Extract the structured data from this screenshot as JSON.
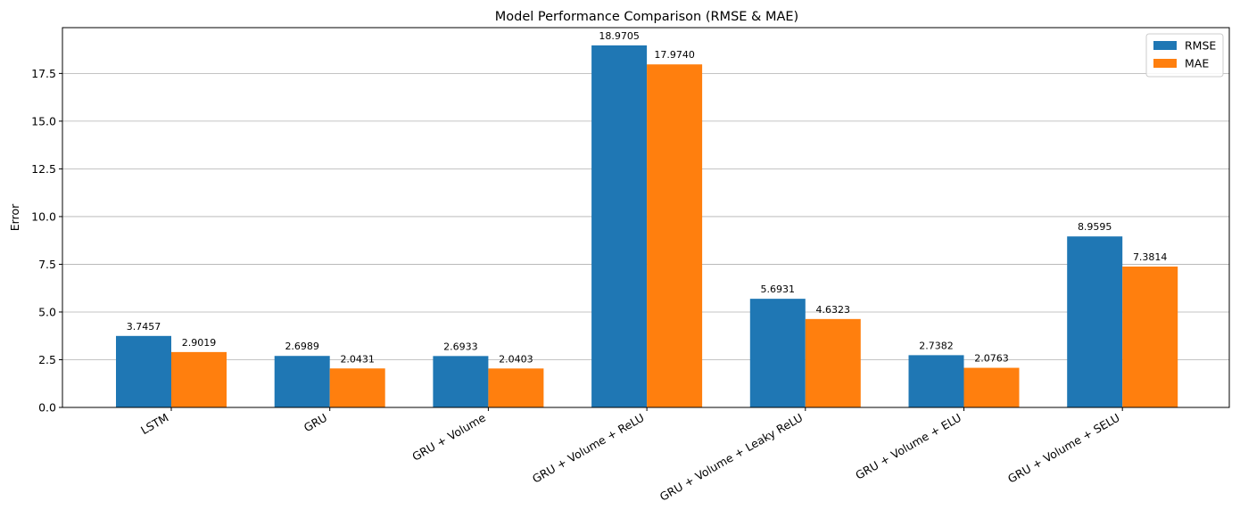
{
  "chart_data": {
    "type": "bar",
    "title": "Model Performance Comparison (RMSE & MAE)",
    "xlabel": "",
    "ylabel": "Error",
    "categories": [
      "LSTM",
      "GRU",
      "GRU + Volume",
      "GRU + Volume + ReLU",
      "GRU + Volume + Leaky ReLU",
      "GRU + Volume + ELU",
      "GRU + Volume + SELU"
    ],
    "series": [
      {
        "name": "RMSE",
        "color": "#1f77b4",
        "values": [
          3.7457,
          2.6989,
          2.6933,
          18.9705,
          5.6931,
          2.7382,
          8.9595
        ],
        "labels": [
          "3.7457",
          "2.6989",
          "2.6933",
          "18.9705",
          "5.6931",
          "2.7382",
          "8.9595"
        ]
      },
      {
        "name": "MAE",
        "color": "#ff7f0e",
        "values": [
          2.9019,
          2.0431,
          2.0403,
          17.974,
          4.6323,
          2.0763,
          7.3814
        ],
        "labels": [
          "2.9019",
          "2.0431",
          "2.0403",
          "17.9740",
          "4.6323",
          "2.0763",
          "7.3814"
        ]
      }
    ],
    "ylim": [
      0,
      19.9
    ],
    "yticks": [
      0.0,
      2.5,
      5.0,
      7.5,
      10.0,
      12.5,
      15.0,
      17.5
    ],
    "ytick_labels": [
      "0.0",
      "2.5",
      "5.0",
      "7.5",
      "10.0",
      "12.5",
      "15.0",
      "17.5"
    ],
    "grid": "y",
    "legend_position": "top-right"
  }
}
